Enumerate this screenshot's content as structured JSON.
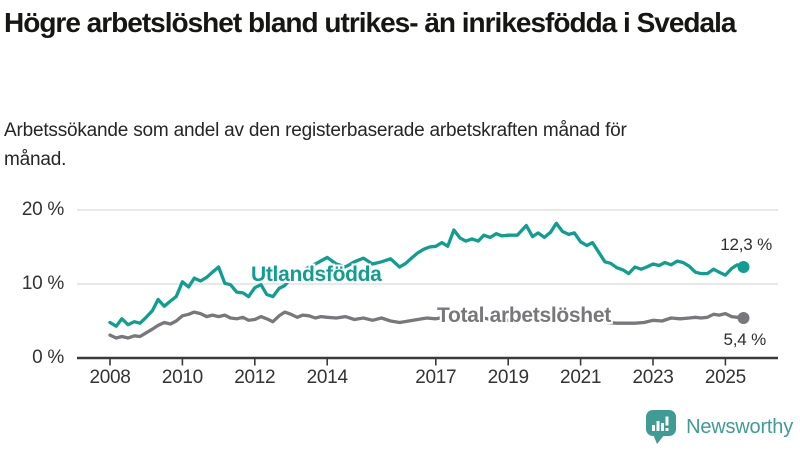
{
  "header": {
    "title": "Högre arbetslöshet bland utrikes- än inrikesfödda i Svedala",
    "subtitle": "Arbetssökande som andel av den registerbaserade arbetskraften månad för månad."
  },
  "chart_data": {
    "type": "line",
    "title": "Högre arbetslöshet bland utrikes- än inrikesfödda i Svedala",
    "subtitle": "Arbetssökande som andel av den registerbaserade arbetskraften månad för månad.",
    "xlabel": "",
    "ylabel": "",
    "ylim": [
      0,
      20
    ],
    "xlim": [
      2007.1,
      2026.5
    ],
    "grid": "horizontal",
    "legend_position": "inline-labels",
    "y_ticks": [
      {
        "value": 0,
        "label": "0 %"
      },
      {
        "value": 10,
        "label": "10 %"
      },
      {
        "value": 20,
        "label": "20 %"
      }
    ],
    "x_ticks": [
      {
        "value": 2008,
        "label": "2008"
      },
      {
        "value": 2010,
        "label": "2010"
      },
      {
        "value": 2012,
        "label": "2012"
      },
      {
        "value": 2014,
        "label": "2014"
      },
      {
        "value": 2017,
        "label": "2017"
      },
      {
        "value": 2019,
        "label": "2019"
      },
      {
        "value": 2021,
        "label": "2021"
      },
      {
        "value": 2023,
        "label": "2023"
      },
      {
        "value": 2025,
        "label": "2025"
      }
    ],
    "series": [
      {
        "name": "Utlandsfödda",
        "color": "#109e91",
        "end_label": "12,3 %",
        "end_value": 12.3,
        "points": [
          [
            2008.0,
            4.8
          ],
          [
            2008.17,
            4.3
          ],
          [
            2008.33,
            5.3
          ],
          [
            2008.5,
            4.5
          ],
          [
            2008.67,
            4.9
          ],
          [
            2008.83,
            4.7
          ],
          [
            2009.0,
            5.5
          ],
          [
            2009.17,
            6.4
          ],
          [
            2009.33,
            7.9
          ],
          [
            2009.5,
            7.0
          ],
          [
            2009.67,
            7.7
          ],
          [
            2009.83,
            8.3
          ],
          [
            2010.0,
            10.3
          ],
          [
            2010.17,
            9.6
          ],
          [
            2010.33,
            10.8
          ],
          [
            2010.5,
            10.4
          ],
          [
            2010.67,
            10.9
          ],
          [
            2010.83,
            11.6
          ],
          [
            2011.0,
            12.3
          ],
          [
            2011.17,
            10.1
          ],
          [
            2011.33,
            9.9
          ],
          [
            2011.5,
            8.9
          ],
          [
            2011.67,
            8.8
          ],
          [
            2011.83,
            8.3
          ],
          [
            2012.0,
            9.5
          ],
          [
            2012.17,
            9.9
          ],
          [
            2012.33,
            8.6
          ],
          [
            2012.5,
            8.3
          ],
          [
            2012.67,
            9.4
          ],
          [
            2012.83,
            9.8
          ],
          [
            2013.0,
            10.8
          ],
          [
            2013.25,
            11.6
          ],
          [
            2013.5,
            12.3
          ],
          [
            2013.75,
            12.9
          ],
          [
            2014.0,
            13.6
          ],
          [
            2014.25,
            12.7
          ],
          [
            2014.5,
            12.3
          ],
          [
            2014.75,
            13.0
          ],
          [
            2015.0,
            13.5
          ],
          [
            2015.25,
            12.7
          ],
          [
            2015.5,
            13.0
          ],
          [
            2015.75,
            13.4
          ],
          [
            2016.0,
            12.3
          ],
          [
            2016.17,
            12.8
          ],
          [
            2016.33,
            13.5
          ],
          [
            2016.5,
            14.2
          ],
          [
            2016.67,
            14.7
          ],
          [
            2016.83,
            15.0
          ],
          [
            2017.0,
            15.1
          ],
          [
            2017.17,
            15.6
          ],
          [
            2017.33,
            15.1
          ],
          [
            2017.5,
            17.3
          ],
          [
            2017.67,
            16.2
          ],
          [
            2017.83,
            15.8
          ],
          [
            2018.0,
            16.1
          ],
          [
            2018.17,
            15.8
          ],
          [
            2018.33,
            16.6
          ],
          [
            2018.5,
            16.3
          ],
          [
            2018.67,
            16.8
          ],
          [
            2018.83,
            16.5
          ],
          [
            2019.0,
            16.6
          ],
          [
            2019.25,
            16.6
          ],
          [
            2019.5,
            17.9
          ],
          [
            2019.67,
            16.4
          ],
          [
            2019.83,
            16.9
          ],
          [
            2020.0,
            16.3
          ],
          [
            2020.17,
            17.0
          ],
          [
            2020.33,
            18.2
          ],
          [
            2020.5,
            17.1
          ],
          [
            2020.67,
            16.7
          ],
          [
            2020.83,
            16.9
          ],
          [
            2021.0,
            15.7
          ],
          [
            2021.17,
            15.2
          ],
          [
            2021.33,
            15.6
          ],
          [
            2021.5,
            14.3
          ],
          [
            2021.67,
            13.0
          ],
          [
            2021.83,
            12.8
          ],
          [
            2022.0,
            12.2
          ],
          [
            2022.17,
            11.9
          ],
          [
            2022.33,
            11.4
          ],
          [
            2022.5,
            12.3
          ],
          [
            2022.67,
            12.0
          ],
          [
            2022.83,
            12.3
          ],
          [
            2023.0,
            12.7
          ],
          [
            2023.17,
            12.5
          ],
          [
            2023.33,
            12.9
          ],
          [
            2023.5,
            12.6
          ],
          [
            2023.67,
            13.1
          ],
          [
            2023.83,
            12.9
          ],
          [
            2024.0,
            12.4
          ],
          [
            2024.17,
            11.6
          ],
          [
            2024.33,
            11.4
          ],
          [
            2024.5,
            11.4
          ],
          [
            2024.67,
            12.0
          ],
          [
            2024.83,
            11.6
          ],
          [
            2025.0,
            11.2
          ],
          [
            2025.17,
            12.1
          ],
          [
            2025.33,
            12.6
          ],
          [
            2025.5,
            12.3
          ]
        ]
      },
      {
        "name": "Total arbetslöshet",
        "color": "#78787c",
        "end_label": "5,4 %",
        "end_value": 5.4,
        "points": [
          [
            2008.0,
            3.1
          ],
          [
            2008.17,
            2.7
          ],
          [
            2008.33,
            2.9
          ],
          [
            2008.5,
            2.7
          ],
          [
            2008.67,
            3.0
          ],
          [
            2008.83,
            2.9
          ],
          [
            2009.0,
            3.4
          ],
          [
            2009.17,
            3.9
          ],
          [
            2009.33,
            4.4
          ],
          [
            2009.5,
            4.8
          ],
          [
            2009.67,
            4.6
          ],
          [
            2009.83,
            5.0
          ],
          [
            2010.0,
            5.7
          ],
          [
            2010.17,
            5.9
          ],
          [
            2010.33,
            6.2
          ],
          [
            2010.5,
            6.0
          ],
          [
            2010.67,
            5.6
          ],
          [
            2010.83,
            5.8
          ],
          [
            2011.0,
            5.6
          ],
          [
            2011.17,
            5.8
          ],
          [
            2011.33,
            5.4
          ],
          [
            2011.5,
            5.3
          ],
          [
            2011.67,
            5.5
          ],
          [
            2011.83,
            5.1
          ],
          [
            2012.0,
            5.2
          ],
          [
            2012.17,
            5.6
          ],
          [
            2012.33,
            5.3
          ],
          [
            2012.5,
            4.9
          ],
          [
            2012.67,
            5.7
          ],
          [
            2012.83,
            6.2
          ],
          [
            2013.0,
            5.9
          ],
          [
            2013.17,
            5.5
          ],
          [
            2013.33,
            5.8
          ],
          [
            2013.5,
            5.7
          ],
          [
            2013.67,
            5.4
          ],
          [
            2013.83,
            5.6
          ],
          [
            2014.0,
            5.5
          ],
          [
            2014.25,
            5.4
          ],
          [
            2014.5,
            5.6
          ],
          [
            2014.75,
            5.2
          ],
          [
            2015.0,
            5.4
          ],
          [
            2015.25,
            5.1
          ],
          [
            2015.5,
            5.4
          ],
          [
            2015.75,
            5.0
          ],
          [
            2016.0,
            4.8
          ],
          [
            2016.25,
            5.0
          ],
          [
            2016.5,
            5.2
          ],
          [
            2016.75,
            5.4
          ],
          [
            2017.0,
            5.3
          ],
          [
            2017.25,
            5.5
          ],
          [
            2017.5,
            5.6
          ],
          [
            2017.75,
            5.3
          ],
          [
            2018.0,
            5.2
          ],
          [
            2018.25,
            5.5
          ],
          [
            2018.5,
            5.2
          ],
          [
            2018.75,
            5.4
          ],
          [
            2019.0,
            5.1
          ],
          [
            2019.25,
            5.3
          ],
          [
            2019.5,
            5.5
          ],
          [
            2019.75,
            5.4
          ],
          [
            2020.0,
            5.3
          ],
          [
            2020.17,
            5.9
          ],
          [
            2020.33,
            6.5
          ],
          [
            2020.5,
            6.6
          ],
          [
            2020.67,
            6.2
          ],
          [
            2020.83,
            6.4
          ],
          [
            2021.0,
            5.9
          ],
          [
            2021.17,
            5.6
          ],
          [
            2021.33,
            5.4
          ],
          [
            2021.5,
            5.1
          ],
          [
            2021.75,
            4.8
          ],
          [
            2022.0,
            4.7
          ],
          [
            2022.25,
            4.7
          ],
          [
            2022.5,
            4.7
          ],
          [
            2022.75,
            4.8
          ],
          [
            2023.0,
            5.1
          ],
          [
            2023.25,
            5.0
          ],
          [
            2023.5,
            5.4
          ],
          [
            2023.75,
            5.3
          ],
          [
            2024.0,
            5.4
          ],
          [
            2024.17,
            5.5
          ],
          [
            2024.33,
            5.4
          ],
          [
            2024.5,
            5.5
          ],
          [
            2024.67,
            5.9
          ],
          [
            2024.83,
            5.8
          ],
          [
            2025.0,
            6.0
          ],
          [
            2025.17,
            5.6
          ],
          [
            2025.33,
            5.5
          ],
          [
            2025.5,
            5.4
          ]
        ]
      }
    ]
  },
  "branding": {
    "logo_text": "Newsworthy",
    "logo_icon": "bar-chart-speech-bubble-icon",
    "color": "#3f9b94"
  }
}
